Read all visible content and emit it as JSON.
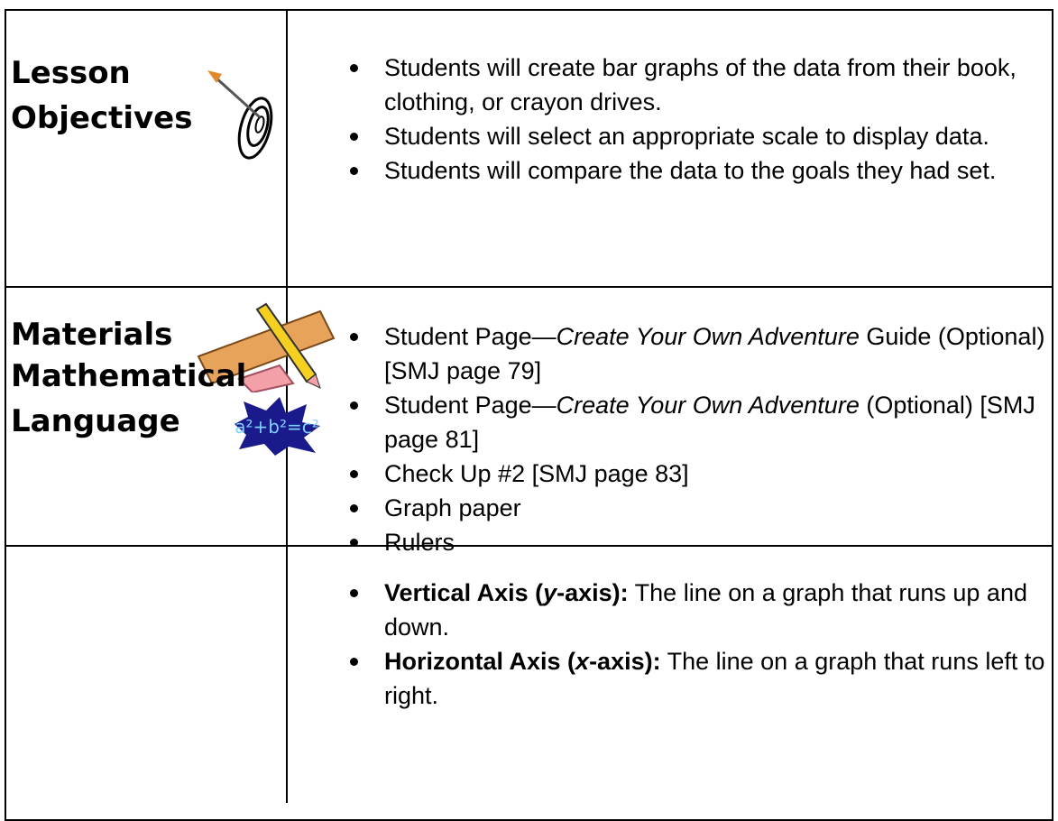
{
  "rows": [
    {
      "heading": [
        "Lesson",
        "Objectives"
      ],
      "items": [
        [
          "Students will create bar graphs of the data from their book, clothing, or crayon drives."
        ],
        [
          "Students will select an appropriate scale to display data."
        ],
        [
          "Students will compare the data to the goals they had set."
        ]
      ]
    },
    {
      "heading": [
        "Materials"
      ],
      "items": [
        [
          "Student Page—",
          "Create Your Own Adventure",
          " Guide (Optional) [SMJ page 79]"
        ],
        [
          "Student Page—",
          "Create Your Own Adventure",
          " (Optional) [SMJ page 81]"
        ],
        [
          "Check Up #2 [SMJ page 83]"
        ],
        [
          "Graph paper"
        ],
        [
          "Rulers"
        ]
      ]
    },
    {
      "heading": [
        "Mathematical",
        "Language"
      ],
      "icon_text": "a²+b²=c²",
      "items": [
        [
          "Vertical Axis (",
          "y",
          "-axis):",
          " The line on a graph that runs up and down."
        ],
        [
          "Horizontal Axis (",
          "x",
          "-axis):",
          " The line on a graph that runs left to right."
        ]
      ]
    }
  ]
}
